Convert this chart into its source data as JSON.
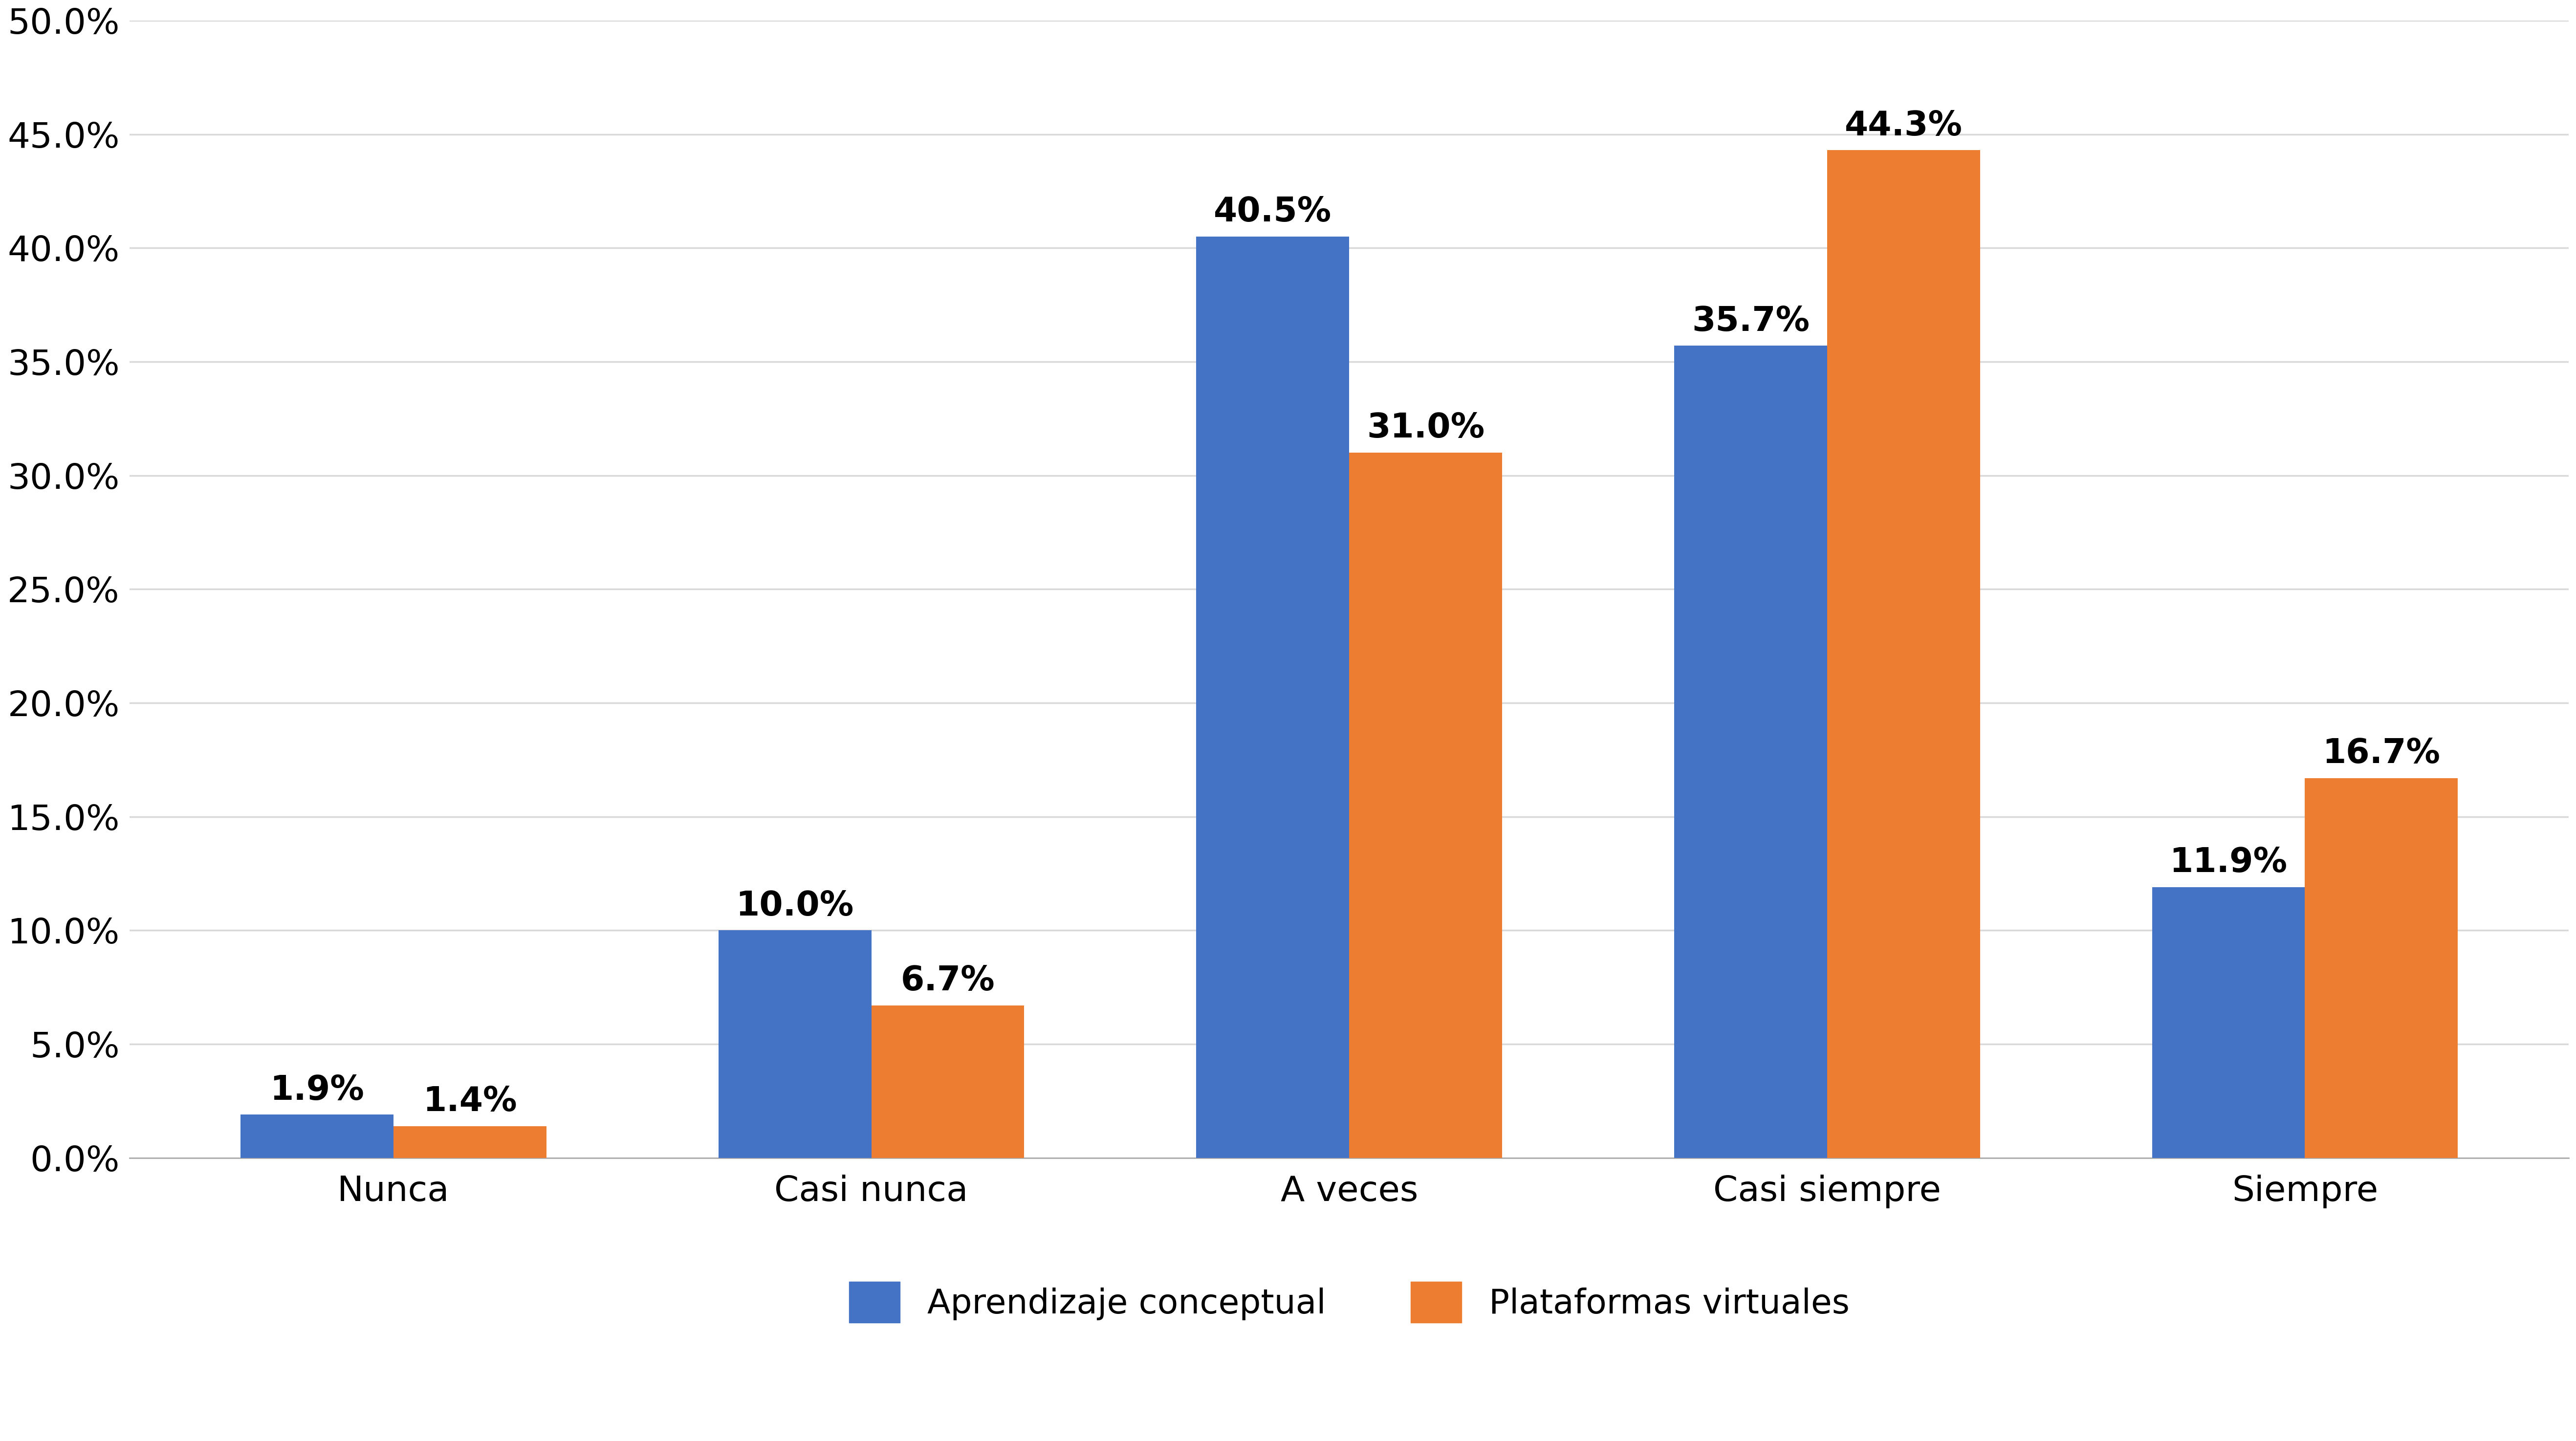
{
  "categories": [
    "Nunca",
    "Casi nunca",
    "A veces",
    "Casi siempre",
    "Siempre"
  ],
  "series": [
    {
      "name": "Aprendizaje conceptual",
      "values": [
        1.9,
        10.0,
        40.5,
        35.7,
        11.9
      ],
      "color": "#4472C4"
    },
    {
      "name": "Plataformas virtuales",
      "values": [
        1.4,
        6.7,
        31.0,
        44.3,
        16.7
      ],
      "color": "#ED7D31"
    }
  ],
  "ylim": [
    0,
    50
  ],
  "yticks": [
    0.0,
    5.0,
    10.0,
    15.0,
    20.0,
    25.0,
    30.0,
    35.0,
    40.0,
    45.0,
    50.0
  ],
  "ytick_labels": [
    "0.0%",
    "5.0%",
    "10.0%",
    "15.0%",
    "20.0%",
    "25.0%",
    "30.0%",
    "35.0%",
    "40.0%",
    "45.0%",
    "50.0%"
  ],
  "bar_width": 0.32,
  "background_color": "#FFFFFF",
  "grid_color": "#D9D9D9",
  "label_fontsize": 52,
  "tick_fontsize": 52,
  "legend_fontsize": 50,
  "annotation_fontsize": 50,
  "legend_position": "lower center",
  "legend_ncol": 2,
  "spine_color": "#AAAAAA"
}
